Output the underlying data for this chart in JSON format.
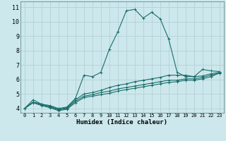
{
  "xlabel": "Humidex (Indice chaleur)",
  "background_color": "#cce8ec",
  "grid_color": "#b8d4d8",
  "line_color": "#1a6e6a",
  "x_ticks": [
    0,
    1,
    2,
    3,
    4,
    5,
    6,
    7,
    8,
    9,
    10,
    11,
    12,
    13,
    14,
    15,
    16,
    17,
    18,
    19,
    20,
    21,
    22,
    23
  ],
  "y_ticks": [
    4,
    5,
    6,
    7,
    8,
    9,
    10,
    11
  ],
  "ylim": [
    3.7,
    11.4
  ],
  "xlim": [
    -0.5,
    23.5
  ],
  "lines": [
    {
      "x": [
        0,
        1,
        2,
        3,
        4,
        5,
        6,
        7,
        8,
        9,
        10,
        11,
        12,
        13,
        14,
        15,
        16,
        17,
        18,
        19,
        20,
        21,
        22,
        23
      ],
      "y": [
        4.0,
        4.6,
        4.3,
        4.2,
        4.0,
        4.1,
        4.7,
        6.3,
        6.2,
        6.5,
        8.1,
        9.3,
        10.75,
        10.85,
        10.25,
        10.65,
        10.2,
        8.8,
        6.5,
        6.2,
        6.2,
        6.7,
        6.6,
        6.55
      ]
    },
    {
      "x": [
        0,
        1,
        2,
        3,
        4,
        5,
        6,
        7,
        8,
        9,
        10,
        11,
        12,
        13,
        14,
        15,
        16,
        17,
        18,
        19,
        20,
        21,
        22,
        23
      ],
      "y": [
        4.0,
        4.45,
        4.3,
        4.15,
        3.95,
        4.05,
        4.6,
        5.0,
        5.1,
        5.25,
        5.45,
        5.6,
        5.7,
        5.85,
        5.95,
        6.05,
        6.15,
        6.3,
        6.3,
        6.3,
        6.2,
        6.25,
        6.4,
        6.5
      ]
    },
    {
      "x": [
        0,
        1,
        2,
        3,
        4,
        5,
        6,
        7,
        8,
        9,
        10,
        11,
        12,
        13,
        14,
        15,
        16,
        17,
        18,
        19,
        20,
        21,
        22,
        23
      ],
      "y": [
        4.0,
        4.4,
        4.25,
        4.1,
        3.9,
        4.0,
        4.5,
        4.85,
        4.95,
        5.1,
        5.2,
        5.35,
        5.45,
        5.55,
        5.65,
        5.75,
        5.85,
        5.95,
        5.95,
        6.05,
        6.05,
        6.15,
        6.3,
        6.45
      ]
    },
    {
      "x": [
        0,
        1,
        2,
        3,
        4,
        5,
        6,
        7,
        8,
        9,
        10,
        11,
        12,
        13,
        14,
        15,
        16,
        17,
        18,
        19,
        20,
        21,
        22,
        23
      ],
      "y": [
        4.0,
        4.4,
        4.2,
        4.05,
        3.85,
        3.95,
        4.4,
        4.75,
        4.85,
        4.95,
        5.05,
        5.2,
        5.3,
        5.4,
        5.5,
        5.6,
        5.7,
        5.8,
        5.85,
        5.95,
        5.95,
        6.05,
        6.2,
        6.45
      ]
    }
  ]
}
